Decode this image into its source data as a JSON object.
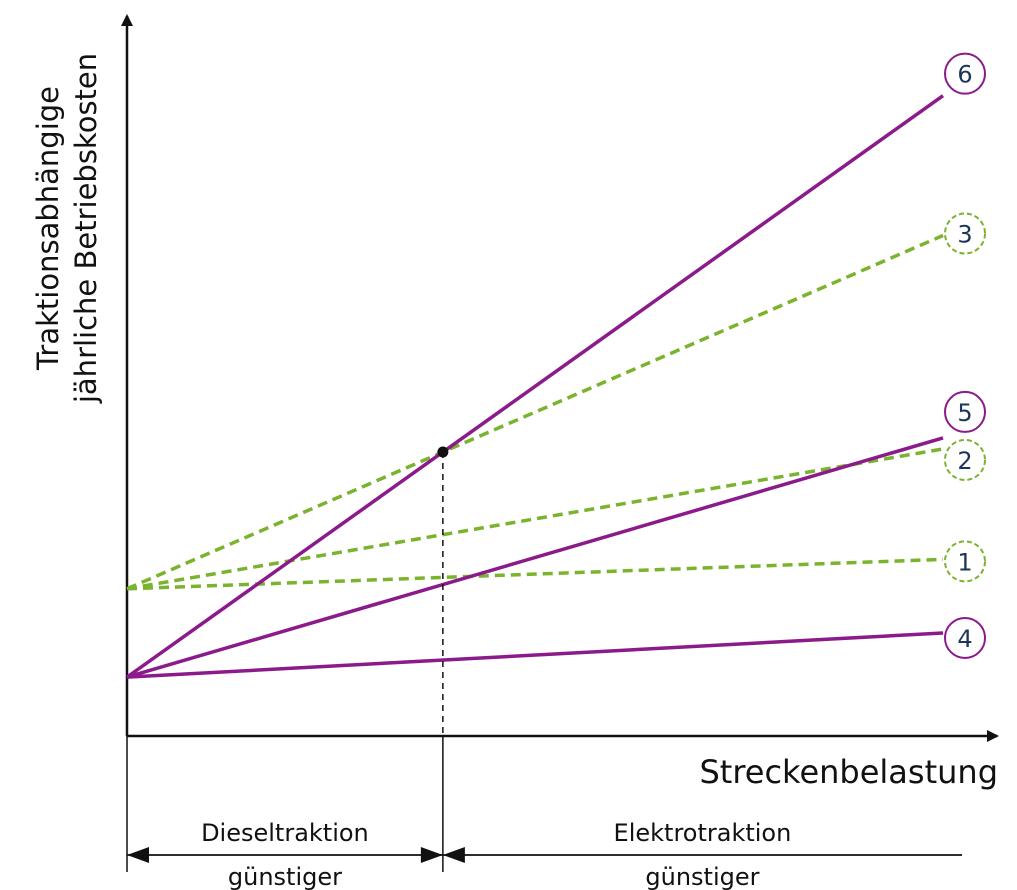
{
  "colors": {
    "electric": "#8b1a8b",
    "diesel": "#7ab32e",
    "axis": "#111111",
    "number_text": "#1d3557"
  },
  "diagram": {
    "ylabel_line1": "Traktionsabhängige",
    "ylabel_line2": "jährliche Betriebskosten",
    "xlabel": "Streckenbelastung",
    "regions": [
      {
        "line1": "Dieseltraktion",
        "line2": "günstiger"
      },
      {
        "line1": "Elektrotraktion",
        "line2": "günstiger"
      }
    ]
  },
  "chart_data": {
    "type": "line",
    "xlabel": "Streckenbelastung",
    "ylabel": "Traktionsabhängige jährliche Betriebskosten",
    "series": [
      {
        "label": "1",
        "kind": "diesel",
        "style": "dashed",
        "x": [
          0,
          10
        ],
        "y": [
          2.0,
          2.4
        ]
      },
      {
        "label": "2",
        "kind": "diesel",
        "style": "dashed",
        "x": [
          0,
          10
        ],
        "y": [
          2.0,
          3.9
        ]
      },
      {
        "label": "3",
        "kind": "diesel",
        "style": "dashed",
        "x": [
          0,
          10
        ],
        "y": [
          2.0,
          6.8
        ]
      },
      {
        "label": "4",
        "kind": "electric",
        "style": "solid",
        "x": [
          0,
          10
        ],
        "y": [
          0.8,
          1.4
        ]
      },
      {
        "label": "5",
        "kind": "electric",
        "style": "solid",
        "x": [
          0,
          10
        ],
        "y": [
          0.8,
          4.05
        ]
      },
      {
        "label": "6",
        "kind": "electric",
        "style": "solid",
        "x": [
          0,
          10
        ],
        "y": [
          0.8,
          8.7
        ]
      }
    ],
    "intersection": {
      "x": 3.7,
      "y": 3.7,
      "between": [
        "3",
        "6"
      ]
    }
  }
}
